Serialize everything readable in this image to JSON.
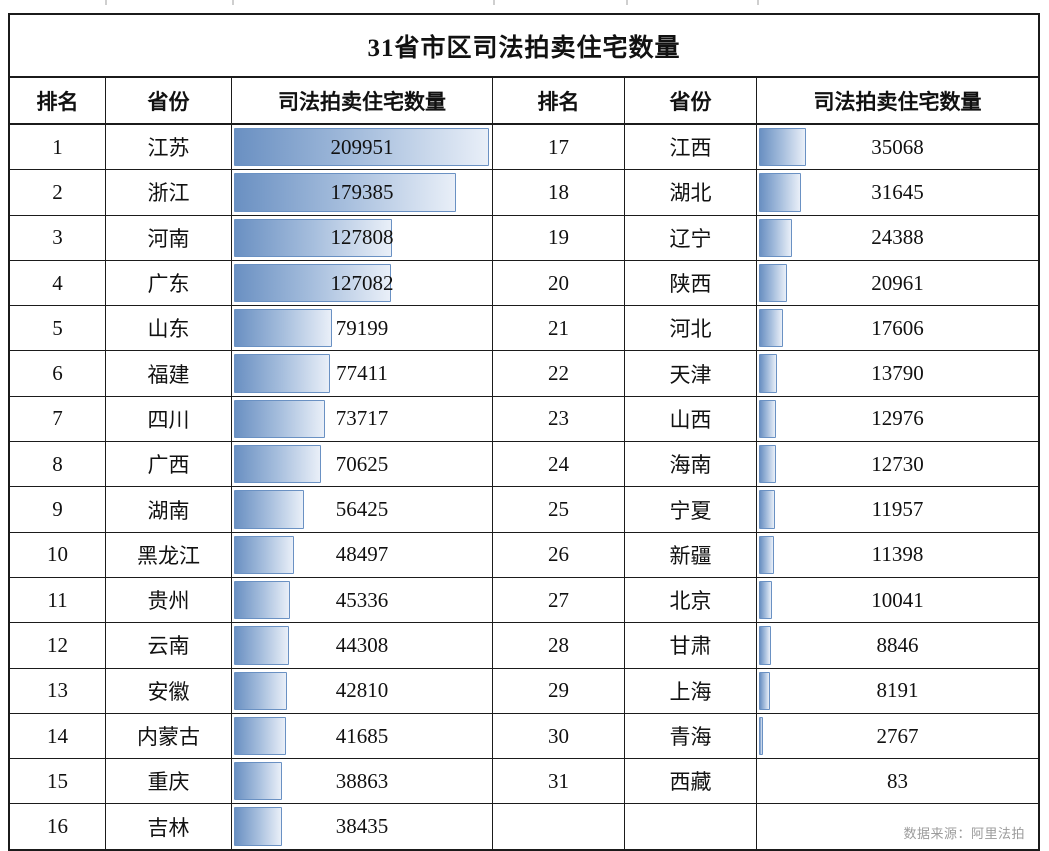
{
  "table": {
    "title": "31省市区司法拍卖住宅数量",
    "headers": {
      "rank": "排名",
      "province": "省份",
      "count": "司法拍卖住宅数量"
    },
    "source_note": "数据来源：阿里法拍",
    "bar_colors": {
      "border": "#6a91c3",
      "fill_start": "#6a90c2",
      "fill_mid": "#a6bedd",
      "fill_end": "#e9eff8"
    }
  },
  "chart_data": {
    "type": "table",
    "title": "31省市区司法拍卖住宅数量",
    "columns": [
      "排名",
      "省份",
      "司法拍卖住宅数量"
    ],
    "bar_max": 209951,
    "layout": "two side-by-side halves: ranks 1-16 left, ranks 17-31 right; horizontal gradient data bars proportional to value, shared max",
    "rows": [
      [
        1,
        "江苏",
        209951
      ],
      [
        2,
        "浙江",
        179385
      ],
      [
        3,
        "河南",
        127808
      ],
      [
        4,
        "广东",
        127082
      ],
      [
        5,
        "山东",
        79199
      ],
      [
        6,
        "福建",
        77411
      ],
      [
        7,
        "四川",
        73717
      ],
      [
        8,
        "广西",
        70625
      ],
      [
        9,
        "湖南",
        56425
      ],
      [
        10,
        "黑龙江",
        48497
      ],
      [
        11,
        "贵州",
        45336
      ],
      [
        12,
        "云南",
        44308
      ],
      [
        13,
        "安徽",
        42810
      ],
      [
        14,
        "内蒙古",
        41685
      ],
      [
        15,
        "重庆",
        38863
      ],
      [
        16,
        "吉林",
        38435
      ],
      [
        17,
        "江西",
        35068
      ],
      [
        18,
        "湖北",
        31645
      ],
      [
        19,
        "辽宁",
        24388
      ],
      [
        20,
        "陕西",
        20961
      ],
      [
        21,
        "河北",
        17606
      ],
      [
        22,
        "天津",
        13790
      ],
      [
        23,
        "山西",
        12976
      ],
      [
        24,
        "海南",
        12730
      ],
      [
        25,
        "宁夏",
        11957
      ],
      [
        26,
        "新疆",
        11398
      ],
      [
        27,
        "北京",
        10041
      ],
      [
        28,
        "甘肃",
        8846
      ],
      [
        29,
        "上海",
        8191
      ],
      [
        30,
        "青海",
        2767
      ],
      [
        31,
        "西藏",
        83
      ]
    ],
    "source": "数据来源：阿里法拍"
  }
}
